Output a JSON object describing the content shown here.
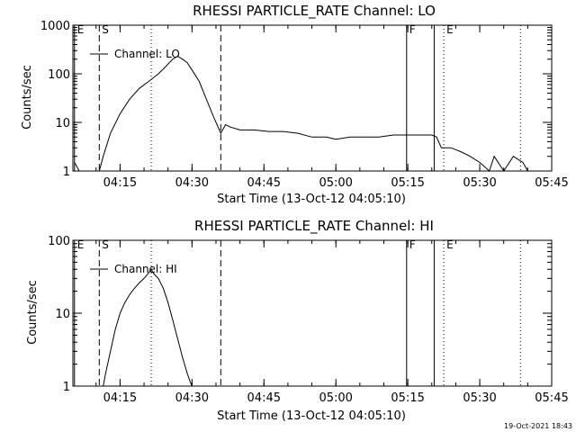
{
  "chart_data": [
    {
      "type": "line",
      "title": "RHESSI PARTICLE_RATE Channel: LO",
      "xlabel": "Start Time (13-Oct-12 04:05:10)",
      "ylabel": "Counts/sec",
      "yscale": "log",
      "ylim": [
        1,
        1000
      ],
      "xlim": [
        "04:05:10",
        "05:45:00"
      ],
      "x_ticks": [
        "04:15",
        "04:30",
        "04:45",
        "05:00",
        "05:15",
        "05:30",
        "05:45"
      ],
      "y_ticks": [
        "1",
        "10",
        "100",
        "1000"
      ],
      "legend": {
        "placement": "top-left",
        "entries": [
          "Channel: LO"
        ]
      },
      "grid": false,
      "markers": [
        {
          "time": "04:05:30",
          "label": "E",
          "style": "solid"
        },
        {
          "time": "04:10:40",
          "label": "S",
          "style": "dashed"
        },
        {
          "time": "04:21:30",
          "label": "",
          "style": "dotted"
        },
        {
          "time": "04:36:00",
          "label": "",
          "style": "dashed"
        },
        {
          "time": "05:14:45",
          "label": "F",
          "style": "solid"
        },
        {
          "time": "05:20:30",
          "label": "",
          "style": "solid"
        },
        {
          "time": "05:22:30",
          "label": "E",
          "style": "dotted"
        },
        {
          "time": "05:38:30",
          "label": "",
          "style": "dotted"
        }
      ],
      "series": [
        {
          "x": [
            "04:05:30",
            "04:06:30",
            "04:07:00",
            "04:10:40",
            "04:11:30",
            "04:13:00",
            "04:15:00",
            "04:17:00",
            "04:19:00",
            "04:21:00",
            "04:23:00",
            "04:24:30",
            "04:26:00",
            "04:27:00",
            "04:28:00",
            "04:29:00",
            "04:30:00",
            "04:31:30",
            "04:33:00",
            "04:34:30",
            "04:36:00",
            "04:37:00",
            "04:38:00",
            "04:40:00",
            "04:43:00",
            "04:46:00",
            "04:49:00",
            "04:52:00",
            "04:55:00",
            "04:58:00",
            "05:00:00",
            "05:03:00",
            "05:06:00",
            "05:09:00",
            "05:12:00",
            "05:15:00",
            "05:18:00",
            "05:20:00",
            "05:21:00",
            "05:22:00",
            "05:24:00",
            "05:26:00",
            "05:28:00",
            "05:30:00",
            "05:32:00",
            "05:33:00",
            "05:35:00",
            "05:37:00",
            "05:39:00",
            "05:40:00",
            "05:40:30"
          ],
          "y": [
            1.5,
            1,
            1,
            1,
            2,
            6,
            15,
            30,
            50,
            70,
            100,
            140,
            200,
            230,
            200,
            170,
            120,
            70,
            30,
            13,
            6,
            9,
            8,
            7,
            7,
            6.5,
            6.5,
            6,
            5,
            5,
            4.5,
            5,
            5,
            5,
            5.5,
            5.5,
            5.5,
            5.5,
            5,
            3,
            3,
            2.5,
            2,
            1.5,
            1,
            2,
            1,
            2,
            1.5,
            1,
            1
          ]
        }
      ]
    },
    {
      "type": "line",
      "title": "RHESSI PARTICLE_RATE Channel: HI",
      "xlabel": "Start Time (13-Oct-12 04:05:10)",
      "ylabel": "Counts/sec",
      "yscale": "log",
      "ylim": [
        1,
        100
      ],
      "xlim": [
        "04:05:10",
        "05:45:00"
      ],
      "x_ticks": [
        "04:15",
        "04:30",
        "04:45",
        "05:00",
        "05:15",
        "05:30",
        "05:45"
      ],
      "y_ticks": [
        "1",
        "10",
        "100"
      ],
      "legend": {
        "placement": "top-left",
        "entries": [
          "Channel: HI"
        ]
      },
      "grid": false,
      "markers": [
        {
          "time": "04:05:30",
          "label": "E",
          "style": "solid"
        },
        {
          "time": "04:10:40",
          "label": "S",
          "style": "dashed"
        },
        {
          "time": "04:21:30",
          "label": "",
          "style": "dotted"
        },
        {
          "time": "04:36:00",
          "label": "",
          "style": "dashed"
        },
        {
          "time": "05:14:45",
          "label": "F",
          "style": "solid"
        },
        {
          "time": "05:20:30",
          "label": "",
          "style": "solid"
        },
        {
          "time": "05:22:30",
          "label": "E",
          "style": "dotted"
        },
        {
          "time": "05:38:30",
          "label": "",
          "style": "dotted"
        }
      ],
      "series": [
        {
          "x": [
            "04:11:30",
            "04:12:00",
            "04:13:00",
            "04:14:00",
            "04:15:00",
            "04:16:00",
            "04:17:00",
            "04:18:00",
            "04:19:00",
            "04:20:00",
            "04:21:00",
            "04:21:30",
            "04:22:00",
            "04:23:00",
            "04:24:00",
            "04:25:00",
            "04:26:00",
            "04:27:00",
            "04:28:00",
            "04:29:00",
            "04:29:30",
            "04:30:00"
          ],
          "y": [
            1,
            1.5,
            3,
            6,
            10,
            14,
            18,
            22,
            26,
            30,
            36,
            40,
            35,
            30,
            22,
            14,
            8,
            4.5,
            2.5,
            1.5,
            1.2,
            1
          ]
        }
      ]
    }
  ],
  "footer": {
    "timestamp": "19-Oct-2021 18:43"
  }
}
